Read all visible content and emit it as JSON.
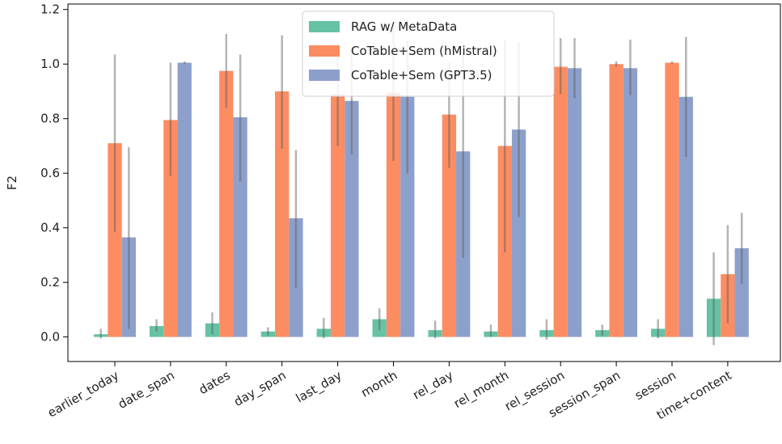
{
  "chart_data": {
    "type": "bar",
    "title": "",
    "xlabel": "",
    "ylabel": "F2",
    "ylim": [
      -0.09,
      1.22
    ],
    "yticks": [
      0.0,
      0.2,
      0.4,
      0.6,
      0.8,
      1.0,
      1.2
    ],
    "ytick_labels": [
      "0.0",
      "0.2",
      "0.4",
      "0.6",
      "0.8",
      "1.0",
      "1.2"
    ],
    "grid": false,
    "legend_position": "top-center",
    "categories": [
      "earlier_today",
      "date_span",
      "dates",
      "day_span",
      "last_day",
      "month",
      "rel_day",
      "rel_month",
      "rel_session",
      "session_span",
      "session",
      "time+content"
    ],
    "series": [
      {
        "name": "RAG w/ MetaData",
        "color": "#66c2a5",
        "values": [
          0.01,
          0.04,
          0.05,
          0.02,
          0.03,
          0.065,
          0.025,
          0.02,
          0.025,
          0.025,
          0.03,
          0.14
        ],
        "err_low": [
          -0.005,
          0.02,
          0.01,
          0.005,
          -0.005,
          0.025,
          -0.005,
          0.0,
          -0.01,
          0.005,
          -0.005,
          -0.03
        ],
        "err_high": [
          0.03,
          0.065,
          0.09,
          0.035,
          0.07,
          0.105,
          0.06,
          0.045,
          0.065,
          0.045,
          0.065,
          0.31
        ]
      },
      {
        "name": "CoTable+Sem (hMistral)",
        "color": "#fc8d62",
        "values": [
          0.71,
          0.795,
          0.975,
          0.9,
          0.89,
          0.895,
          0.815,
          0.7,
          0.99,
          1.0,
          1.005,
          0.23
        ],
        "err_low": [
          0.385,
          0.59,
          0.84,
          0.69,
          0.7,
          0.645,
          0.62,
          0.31,
          0.89,
          0.99,
          1.0,
          0.05
        ],
        "err_high": [
          1.035,
          1.005,
          1.11,
          1.105,
          1.08,
          1.15,
          1.005,
          1.09,
          1.095,
          1.01,
          1.01,
          0.41
        ]
      },
      {
        "name": "CoTable+Sem (GPT3.5)",
        "color": "#8da0cb",
        "values": [
          0.365,
          1.005,
          0.805,
          0.435,
          0.865,
          0.88,
          0.68,
          0.76,
          0.985,
          0.985,
          0.88,
          0.325
        ],
        "err_low": [
          0.03,
          1.0,
          0.57,
          0.18,
          0.67,
          0.6,
          0.29,
          0.44,
          0.875,
          0.885,
          0.66,
          0.195
        ],
        "err_high": [
          0.695,
          1.01,
          1.035,
          0.685,
          1.06,
          1.085,
          1.07,
          1.08,
          1.095,
          1.09,
          1.1,
          0.455
        ]
      }
    ]
  }
}
